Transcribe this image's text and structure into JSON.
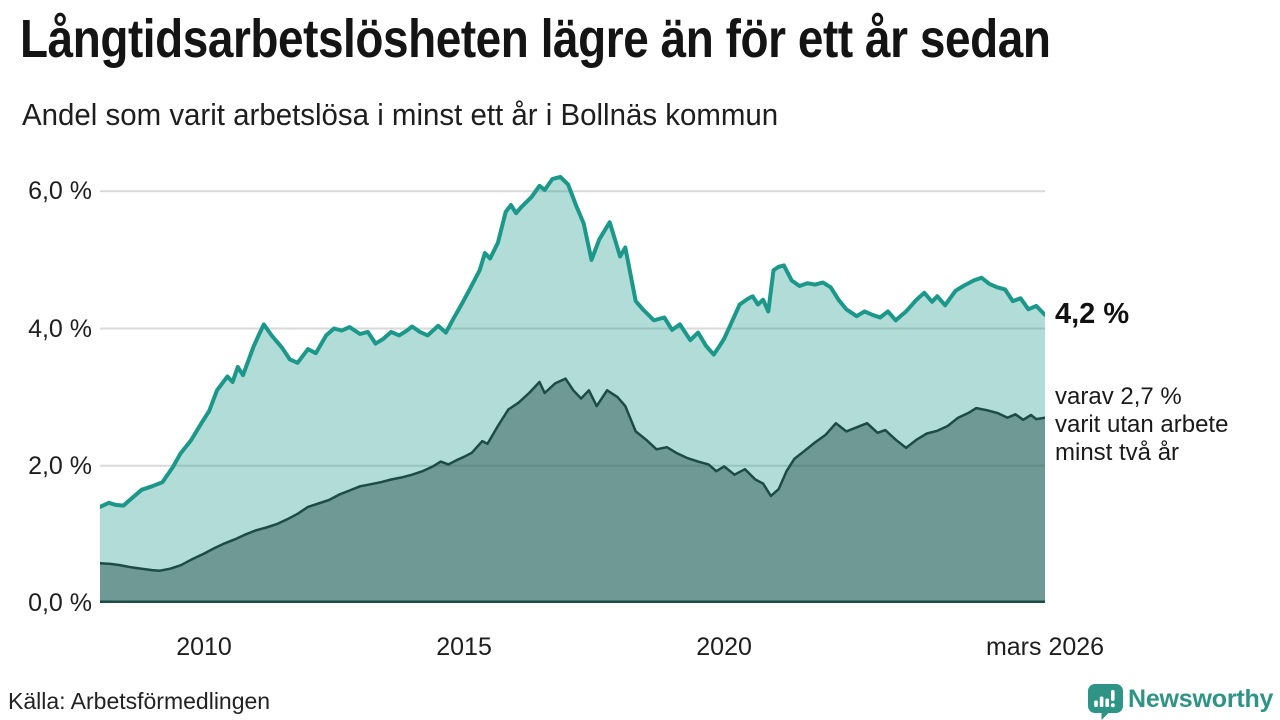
{
  "header": {
    "title": "Långtidsarbetslösheten lägre än för ett år sedan",
    "subtitle": "Andel som varit arbetslösa i minst ett år i Bollnäs kommun"
  },
  "annotations": {
    "latest_value": "4,2 %",
    "detail_lines": [
      "varav 2,7 %",
      "varit utan arbete",
      "minst två år"
    ]
  },
  "footer": {
    "source": "Källa: Arbetsförmedlingen",
    "brand": "Newsworthy"
  },
  "colors": {
    "text": "#141414",
    "gridline": "#d9d9d9",
    "axis_baseline": "#1d4b45",
    "teal_line": "#1b9889",
    "teal_fill": "rgba(27,152,137,0.34)",
    "dark_line": "#1d4b45",
    "dark_fill": "rgba(29,71,66,0.45)",
    "brand_teal": "#2e9486"
  },
  "chart_data": {
    "type": "area",
    "title": "Långtidsarbetslösheten lägre än för ett år sedan",
    "subtitle": "Andel som varit arbetslösa i minst ett år i Bollnäs kommun",
    "unit": "%",
    "grid": "horizontal only",
    "legend": "none (values annotated at line end)",
    "x_range": [
      2008.0,
      2026.17
    ],
    "ylim": [
      0,
      6.31
    ],
    "yticks": [
      {
        "v": 0,
        "label": "0,0 %"
      },
      {
        "v": 2,
        "label": "2,0 %"
      },
      {
        "v": 4,
        "label": "4,0 %"
      },
      {
        "v": 6,
        "label": "6,0 %"
      }
    ],
    "xticks": [
      {
        "v": 2010,
        "label": "2010"
      },
      {
        "v": 2015,
        "label": "2015"
      },
      {
        "v": 2020,
        "label": "2020"
      },
      {
        "v": 2026.17,
        "label": "mars 2026"
      }
    ],
    "series": [
      {
        "name": "Andel arbetslösa minst ett år",
        "end_label": "4,2 %",
        "line_color": "#1b9889",
        "fill_color": "rgba(27,152,137,0.34)",
        "line_width": 4,
        "points": [
          [
            2008.0,
            1.4
          ],
          [
            2008.17,
            1.46
          ],
          [
            2008.3,
            1.43
          ],
          [
            2008.45,
            1.42
          ],
          [
            2008.6,
            1.52
          ],
          [
            2008.8,
            1.65
          ],
          [
            2009.0,
            1.7
          ],
          [
            2009.2,
            1.76
          ],
          [
            2009.4,
            1.98
          ],
          [
            2009.55,
            2.18
          ],
          [
            2009.75,
            2.37
          ],
          [
            2009.95,
            2.62
          ],
          [
            2010.1,
            2.8
          ],
          [
            2010.25,
            3.1
          ],
          [
            2010.45,
            3.3
          ],
          [
            2010.55,
            3.22
          ],
          [
            2010.65,
            3.44
          ],
          [
            2010.75,
            3.32
          ],
          [
            2010.95,
            3.73
          ],
          [
            2011.05,
            3.9
          ],
          [
            2011.15,
            4.06
          ],
          [
            2011.3,
            3.9
          ],
          [
            2011.5,
            3.72
          ],
          [
            2011.65,
            3.55
          ],
          [
            2011.8,
            3.5
          ],
          [
            2012.0,
            3.7
          ],
          [
            2012.15,
            3.64
          ],
          [
            2012.35,
            3.9
          ],
          [
            2012.5,
            4.0
          ],
          [
            2012.65,
            3.97
          ],
          [
            2012.8,
            4.02
          ],
          [
            2013.0,
            3.92
          ],
          [
            2013.15,
            3.95
          ],
          [
            2013.3,
            3.78
          ],
          [
            2013.45,
            3.85
          ],
          [
            2013.6,
            3.95
          ],
          [
            2013.75,
            3.9
          ],
          [
            2013.9,
            3.97
          ],
          [
            2014.0,
            4.03
          ],
          [
            2014.15,
            3.95
          ],
          [
            2014.3,
            3.9
          ],
          [
            2014.5,
            4.04
          ],
          [
            2014.65,
            3.94
          ],
          [
            2014.8,
            4.15
          ],
          [
            2014.95,
            4.35
          ],
          [
            2015.1,
            4.56
          ],
          [
            2015.3,
            4.85
          ],
          [
            2015.4,
            5.1
          ],
          [
            2015.5,
            5.02
          ],
          [
            2015.65,
            5.25
          ],
          [
            2015.8,
            5.7
          ],
          [
            2015.9,
            5.8
          ],
          [
            2016.0,
            5.68
          ],
          [
            2016.1,
            5.77
          ],
          [
            2016.3,
            5.92
          ],
          [
            2016.45,
            6.08
          ],
          [
            2016.55,
            6.02
          ],
          [
            2016.7,
            6.18
          ],
          [
            2016.85,
            6.21
          ],
          [
            2017.0,
            6.1
          ],
          [
            2017.15,
            5.8
          ],
          [
            2017.3,
            5.53
          ],
          [
            2017.45,
            5.0
          ],
          [
            2017.6,
            5.3
          ],
          [
            2017.8,
            5.55
          ],
          [
            2017.9,
            5.3
          ],
          [
            2018.0,
            5.05
          ],
          [
            2018.1,
            5.18
          ],
          [
            2018.3,
            4.4
          ],
          [
            2018.45,
            4.27
          ],
          [
            2018.65,
            4.12
          ],
          [
            2018.85,
            4.16
          ],
          [
            2019.0,
            3.98
          ],
          [
            2019.15,
            4.06
          ],
          [
            2019.35,
            3.83
          ],
          [
            2019.5,
            3.94
          ],
          [
            2019.65,
            3.75
          ],
          [
            2019.8,
            3.62
          ],
          [
            2019.9,
            3.73
          ],
          [
            2020.0,
            3.85
          ],
          [
            2020.15,
            4.1
          ],
          [
            2020.3,
            4.35
          ],
          [
            2020.45,
            4.43
          ],
          [
            2020.55,
            4.47
          ],
          [
            2020.65,
            4.35
          ],
          [
            2020.75,
            4.42
          ],
          [
            2020.85,
            4.25
          ],
          [
            2020.95,
            4.85
          ],
          [
            2021.05,
            4.9
          ],
          [
            2021.15,
            4.92
          ],
          [
            2021.3,
            4.7
          ],
          [
            2021.45,
            4.62
          ],
          [
            2021.6,
            4.66
          ],
          [
            2021.75,
            4.64
          ],
          [
            2021.9,
            4.67
          ],
          [
            2022.05,
            4.6
          ],
          [
            2022.2,
            4.42
          ],
          [
            2022.35,
            4.28
          ],
          [
            2022.55,
            4.18
          ],
          [
            2022.7,
            4.25
          ],
          [
            2022.85,
            4.2
          ],
          [
            2023.0,
            4.16
          ],
          [
            2023.15,
            4.25
          ],
          [
            2023.3,
            4.12
          ],
          [
            2023.5,
            4.25
          ],
          [
            2023.7,
            4.42
          ],
          [
            2023.85,
            4.52
          ],
          [
            2024.0,
            4.39
          ],
          [
            2024.1,
            4.47
          ],
          [
            2024.25,
            4.34
          ],
          [
            2024.45,
            4.55
          ],
          [
            2024.6,
            4.62
          ],
          [
            2024.8,
            4.7
          ],
          [
            2024.95,
            4.74
          ],
          [
            2025.1,
            4.65
          ],
          [
            2025.25,
            4.6
          ],
          [
            2025.4,
            4.57
          ],
          [
            2025.55,
            4.4
          ],
          [
            2025.7,
            4.44
          ],
          [
            2025.85,
            4.28
          ],
          [
            2026.0,
            4.33
          ],
          [
            2026.17,
            4.2
          ]
        ]
      },
      {
        "name": "varav utan arbete minst två år",
        "end_label": "2,7 %",
        "line_color": "#1d4b45",
        "fill_color": "rgba(29,71,66,0.45)",
        "line_width": 2.5,
        "points": [
          [
            2008.0,
            0.58
          ],
          [
            2008.2,
            0.57
          ],
          [
            2008.4,
            0.55
          ],
          [
            2008.6,
            0.52
          ],
          [
            2008.8,
            0.5
          ],
          [
            2009.0,
            0.48
          ],
          [
            2009.15,
            0.47
          ],
          [
            2009.35,
            0.5
          ],
          [
            2009.55,
            0.55
          ],
          [
            2009.75,
            0.63
          ],
          [
            2010.0,
            0.72
          ],
          [
            2010.2,
            0.8
          ],
          [
            2010.4,
            0.87
          ],
          [
            2010.6,
            0.93
          ],
          [
            2010.8,
            1.0
          ],
          [
            2011.0,
            1.06
          ],
          [
            2011.2,
            1.1
          ],
          [
            2011.4,
            1.15
          ],
          [
            2011.6,
            1.22
          ],
          [
            2011.8,
            1.3
          ],
          [
            2012.0,
            1.4
          ],
          [
            2012.2,
            1.45
          ],
          [
            2012.4,
            1.5
          ],
          [
            2012.6,
            1.58
          ],
          [
            2012.8,
            1.64
          ],
          [
            2013.0,
            1.7
          ],
          [
            2013.2,
            1.73
          ],
          [
            2013.4,
            1.76
          ],
          [
            2013.6,
            1.8
          ],
          [
            2013.8,
            1.83
          ],
          [
            2014.0,
            1.87
          ],
          [
            2014.2,
            1.92
          ],
          [
            2014.4,
            1.99
          ],
          [
            2014.55,
            2.06
          ],
          [
            2014.7,
            2.02
          ],
          [
            2014.85,
            2.08
          ],
          [
            2015.0,
            2.13
          ],
          [
            2015.15,
            2.19
          ],
          [
            2015.35,
            2.36
          ],
          [
            2015.45,
            2.32
          ],
          [
            2015.65,
            2.58
          ],
          [
            2015.85,
            2.82
          ],
          [
            2016.05,
            2.92
          ],
          [
            2016.25,
            3.06
          ],
          [
            2016.45,
            3.22
          ],
          [
            2016.55,
            3.06
          ],
          [
            2016.75,
            3.2
          ],
          [
            2016.95,
            3.27
          ],
          [
            2017.1,
            3.1
          ],
          [
            2017.25,
            2.98
          ],
          [
            2017.4,
            3.1
          ],
          [
            2017.55,
            2.87
          ],
          [
            2017.75,
            3.1
          ],
          [
            2017.95,
            3.0
          ],
          [
            2018.1,
            2.87
          ],
          [
            2018.3,
            2.5
          ],
          [
            2018.5,
            2.38
          ],
          [
            2018.7,
            2.24
          ],
          [
            2018.9,
            2.27
          ],
          [
            2019.1,
            2.18
          ],
          [
            2019.3,
            2.11
          ],
          [
            2019.5,
            2.06
          ],
          [
            2019.7,
            2.02
          ],
          [
            2019.85,
            1.92
          ],
          [
            2020.0,
            1.99
          ],
          [
            2020.2,
            1.87
          ],
          [
            2020.4,
            1.95
          ],
          [
            2020.6,
            1.8
          ],
          [
            2020.75,
            1.74
          ],
          [
            2020.9,
            1.56
          ],
          [
            2021.05,
            1.66
          ],
          [
            2021.2,
            1.92
          ],
          [
            2021.35,
            2.1
          ],
          [
            2021.55,
            2.22
          ],
          [
            2021.75,
            2.34
          ],
          [
            2021.95,
            2.45
          ],
          [
            2022.15,
            2.62
          ],
          [
            2022.35,
            2.5
          ],
          [
            2022.55,
            2.56
          ],
          [
            2022.75,
            2.62
          ],
          [
            2022.95,
            2.48
          ],
          [
            2023.1,
            2.52
          ],
          [
            2023.3,
            2.38
          ],
          [
            2023.5,
            2.26
          ],
          [
            2023.7,
            2.38
          ],
          [
            2023.9,
            2.47
          ],
          [
            2024.1,
            2.51
          ],
          [
            2024.3,
            2.58
          ],
          [
            2024.5,
            2.7
          ],
          [
            2024.7,
            2.77
          ],
          [
            2024.85,
            2.84
          ],
          [
            2025.05,
            2.81
          ],
          [
            2025.25,
            2.77
          ],
          [
            2025.45,
            2.7
          ],
          [
            2025.6,
            2.75
          ],
          [
            2025.75,
            2.67
          ],
          [
            2025.9,
            2.74
          ],
          [
            2026.0,
            2.68
          ],
          [
            2026.17,
            2.7
          ]
        ]
      }
    ]
  }
}
